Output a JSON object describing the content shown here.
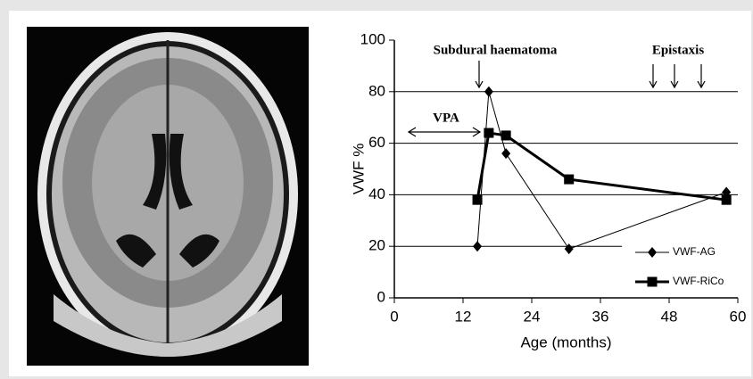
{
  "chart_data": {
    "type": "line",
    "xlabel": "Age (months)",
    "ylabel": "VWF %",
    "xlim": [
      0,
      60
    ],
    "xticks": [
      0,
      12,
      24,
      36,
      48,
      60
    ],
    "ylim": [
      0,
      100
    ],
    "yticks": [
      0,
      20,
      40,
      60,
      80,
      100
    ],
    "grid": true,
    "legend": "lower right",
    "annotations": [
      "Subdural haematoma",
      "Epistaxis",
      "VPA"
    ],
    "series": [
      {
        "name": "VWF-AG",
        "color": "#000000",
        "marker": "diamond",
        "x": [
          14.5,
          16.5,
          19.5,
          30.5,
          58
        ],
        "values": [
          20,
          80,
          56,
          19,
          41
        ]
      },
      {
        "name": "VWF-RiCo",
        "color": "#000000",
        "marker": "square",
        "x": [
          14.5,
          16.5,
          19.5,
          30.5,
          58
        ],
        "values": [
          38,
          64,
          63,
          46,
          38
        ]
      }
    ]
  }
}
